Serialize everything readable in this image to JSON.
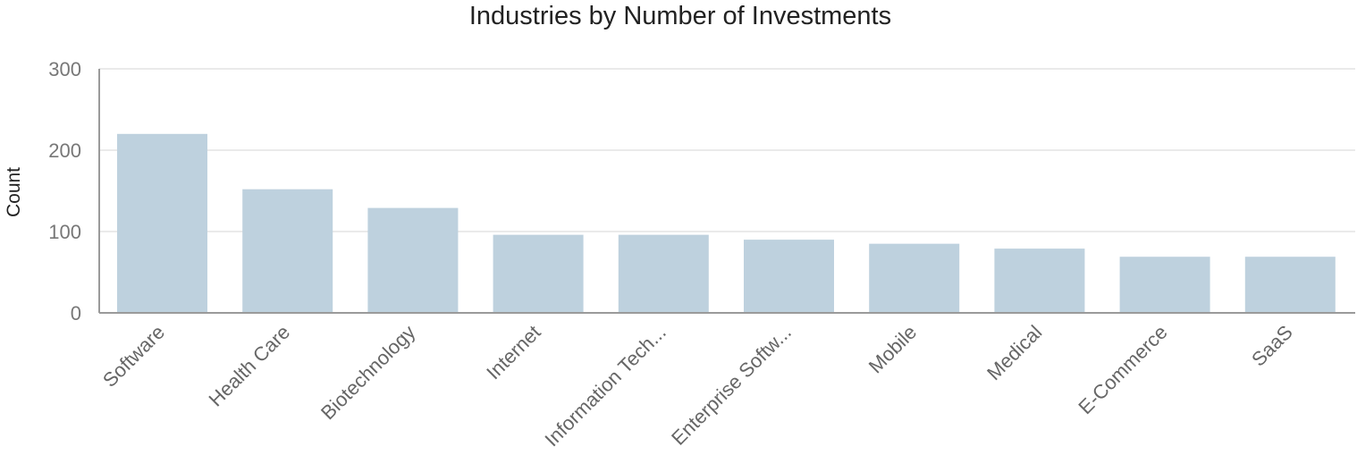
{
  "chart_data": {
    "type": "bar",
    "title": "Industries by Number of Investments",
    "xlabel": "",
    "ylabel": "Count",
    "ylim": [
      0,
      300
    ],
    "yticks": [
      0,
      100,
      200,
      300
    ],
    "grid": true,
    "bar_color": "#bed1de",
    "categories": [
      "Software",
      "Health Care",
      "Biotechnology",
      "Internet",
      "Information Tech...",
      "Enterprise Softw...",
      "Mobile",
      "Medical",
      "E-Commerce",
      "SaaS"
    ],
    "values": [
      220,
      152,
      129,
      96,
      96,
      90,
      85,
      79,
      69,
      69
    ]
  }
}
